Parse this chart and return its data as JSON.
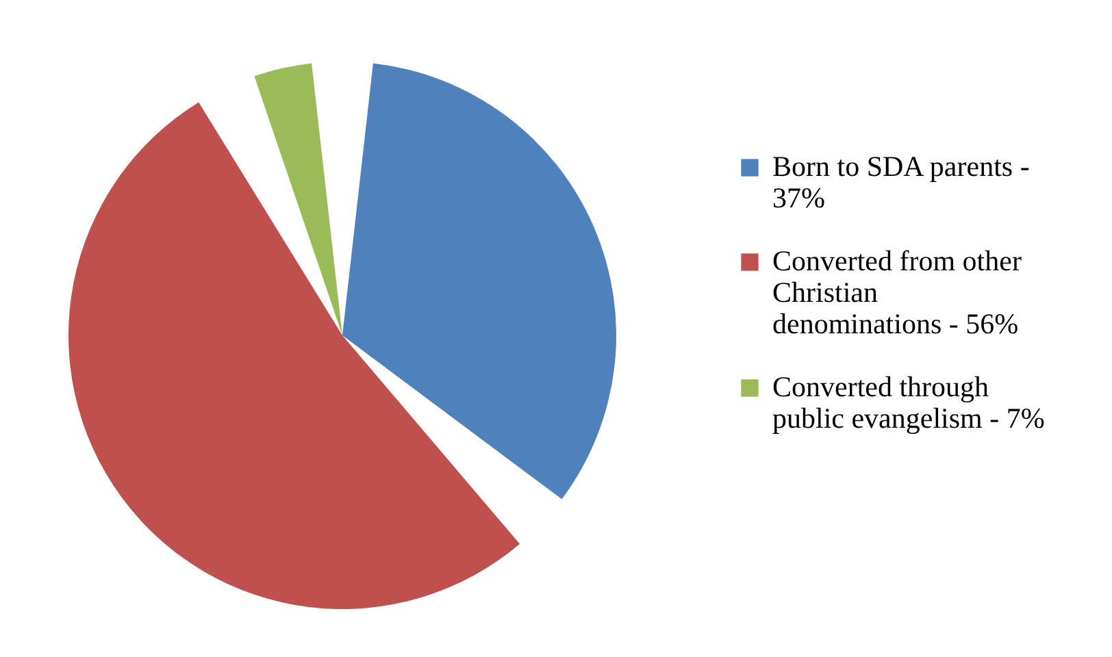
{
  "chart_data": {
    "type": "pie",
    "categories": [
      "Born to SDA parents - 37%",
      "Converted from other Christian denominations - 56%",
      "Converted through public evangelism - 7%"
    ],
    "values": [
      37,
      56,
      7
    ],
    "colors": [
      "#4f81bd",
      "#c0504d",
      "#9bbb59"
    ],
    "legend": "right"
  }
}
